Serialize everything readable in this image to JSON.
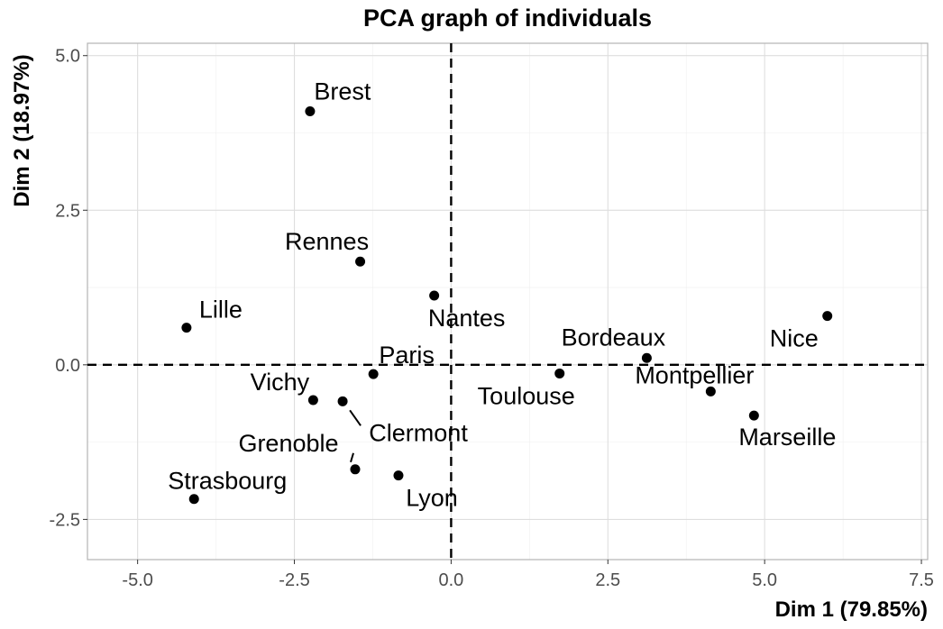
{
  "chart_data": {
    "type": "scatter",
    "title": "PCA graph of individuals",
    "xlabel": "Dim 1 (79.85%)",
    "ylabel": "Dim 2 (18.97%)",
    "xlim": [
      -5.8,
      7.6
    ],
    "ylim": [
      -3.15,
      5.2
    ],
    "xticks": [
      -5.0,
      -2.5,
      0.0,
      2.5,
      5.0,
      7.5
    ],
    "xtick_labels": [
      "-5.0",
      "-2.5",
      "0.0",
      "2.5",
      "5.0",
      "7.5"
    ],
    "yticks": [
      -2.5,
      0.0,
      2.5,
      5.0
    ],
    "ytick_labels": [
      "-2.5",
      "0.0",
      "2.5",
      "5.0"
    ],
    "grid": true,
    "reference_lines": {
      "x": 0,
      "y": 0,
      "style": "dashed"
    },
    "color": "#000000",
    "points": [
      {
        "label": "Brest",
        "x": -2.25,
        "y": 4.1
      },
      {
        "label": "Rennes",
        "x": -1.45,
        "y": 1.67
      },
      {
        "label": "Nantes",
        "x": -0.27,
        "y": 1.12
      },
      {
        "label": "Lille",
        "x": -4.22,
        "y": 0.6
      },
      {
        "label": "Paris",
        "x": -1.24,
        "y": -0.15
      },
      {
        "label": "Vichy",
        "x": -2.2,
        "y": -0.57
      },
      {
        "label": "Clermont",
        "x": -1.73,
        "y": -0.59
      },
      {
        "label": "Grenoble",
        "x": -1.53,
        "y": -1.69
      },
      {
        "label": "Lyon",
        "x": -0.84,
        "y": -1.79
      },
      {
        "label": "Strasbourg",
        "x": -4.1,
        "y": -2.17
      },
      {
        "label": "Bordeaux",
        "x": 3.12,
        "y": 0.11
      },
      {
        "label": "Toulouse",
        "x": 1.73,
        "y": -0.14
      },
      {
        "label": "Montpellier",
        "x": 4.14,
        "y": -0.43
      },
      {
        "label": "Marseille",
        "x": 4.83,
        "y": -0.82
      },
      {
        "label": "Nice",
        "x": 6.0,
        "y": 0.79
      }
    ]
  }
}
